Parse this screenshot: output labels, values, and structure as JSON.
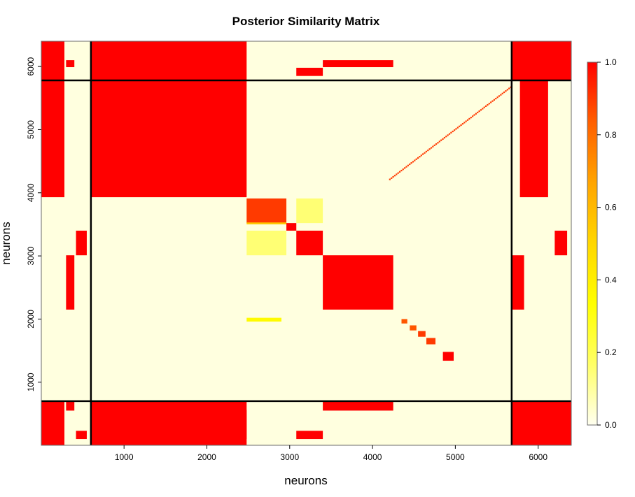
{
  "chart_data": {
    "type": "heatmap",
    "title": "Posterior Similarity Matrix",
    "xlabel": "neurons",
    "ylabel": "neurons",
    "xlim": [
      1,
      6400
    ],
    "ylim": [
      1,
      6400
    ],
    "x_ticks": [
      1000,
      2000,
      3000,
      4000,
      5000,
      6000
    ],
    "y_ticks": [
      1000,
      2000,
      3000,
      4000,
      5000,
      6000
    ],
    "x_tick_labels": [
      "1000",
      "2000",
      "3000",
      "4000",
      "5000",
      "6000"
    ],
    "y_tick_labels": [
      "1000",
      "2000",
      "3000",
      "4000",
      "5000",
      "6000"
    ],
    "colorbar": {
      "min": 0.0,
      "max": 1.0,
      "ticks": [
        0.0,
        0.2,
        0.4,
        0.6,
        0.8,
        1.0
      ],
      "tick_labels": [
        "0.0",
        "0.2",
        "0.4",
        "0.6",
        "0.8",
        "1.0"
      ],
      "colors": [
        "#fffff0",
        "#ffff66",
        "#ffff00",
        "#ffd700",
        "#ffa500",
        "#ff6000",
        "#ff0000"
      ]
    },
    "background_value": 0.02,
    "separator_lines": {
      "x": [
        600,
        5680
      ],
      "y": [
        700,
        5780
      ],
      "color": "#000000"
    },
    "blocks": [
      {
        "x": [
          1,
          280
        ],
        "y": [
          5780,
          6400
        ],
        "value": 1.0
      },
      {
        "x": [
          600,
          2480
        ],
        "y": [
          5780,
          6400
        ],
        "value": 1.0
      },
      {
        "x": [
          1,
          280
        ],
        "y": [
          1,
          700
        ],
        "value": 1.0
      },
      {
        "x": [
          600,
          2480
        ],
        "y": [
          1,
          700
        ],
        "value": 1.0
      },
      {
        "x": [
          5680,
          6400
        ],
        "y": [
          5780,
          6400
        ],
        "value": 1.0
      },
      {
        "x": [
          5680,
          6400
        ],
        "y": [
          1,
          700
        ],
        "value": 1.0
      },
      {
        "x": [
          1,
          280
        ],
        "y": [
          3930,
          5780
        ],
        "value": 1.0
      },
      {
        "x": [
          5780,
          6120
        ],
        "y": [
          3930,
          5780
        ],
        "value": 1.0
      },
      {
        "x": [
          600,
          2480
        ],
        "y": [
          3930,
          5780
        ],
        "value": 1.0
      },
      {
        "x": [
          1,
          280
        ],
        "y": [
          100,
          560
        ],
        "value": 1.0
      },
      {
        "x": [
          600,
          2480
        ],
        "y": [
          100,
          560
        ],
        "value": 1.0
      },
      {
        "x": [
          5780,
          6120
        ],
        "y": [
          100,
          560
        ],
        "value": 1.0
      },
      {
        "x": [
          2480,
          2960
        ],
        "y": [
          3520,
          3910
        ],
        "value": 0.9
      },
      {
        "x": [
          2960,
          3080
        ],
        "y": [
          3400,
          3520
        ],
        "value": 1.0
      },
      {
        "x": [
          3080,
          3400
        ],
        "y": [
          3010,
          3400
        ],
        "value": 1.0
      },
      {
        "x": [
          3400,
          4250
        ],
        "y": [
          2150,
          3010
        ],
        "value": 1.0
      },
      {
        "x": [
          3400,
          4250
        ],
        "y": [
          5990,
          6100
        ],
        "value": 1.0
      },
      {
        "x": [
          3400,
          4250
        ],
        "y": [
          550,
          700
        ],
        "value": 1.0
      },
      {
        "x": [
          3080,
          3400
        ],
        "y": [
          5850,
          5980
        ],
        "value": 1.0
      },
      {
        "x": [
          3080,
          3400
        ],
        "y": [
          100,
          230
        ],
        "value": 1.0
      },
      {
        "x": [
          420,
          550
        ],
        "y": [
          3010,
          3400
        ],
        "value": 1.0
      },
      {
        "x": [
          300,
          400
        ],
        "y": [
          2150,
          3010
        ],
        "value": 1.0
      },
      {
        "x": [
          6200,
          6350
        ],
        "y": [
          3010,
          3400
        ],
        "value": 1.0
      },
      {
        "x": [
          5680,
          5830
        ],
        "y": [
          2150,
          3010
        ],
        "value": 1.0
      },
      {
        "x": [
          300,
          400
        ],
        "y": [
          5990,
          6100
        ],
        "value": 1.0
      },
      {
        "x": [
          300,
          400
        ],
        "y": [
          550,
          700
        ],
        "value": 1.0
      },
      {
        "x": [
          5680,
          5830
        ],
        "y": [
          5990,
          6100
        ],
        "value": 1.0
      },
      {
        "x": [
          5680,
          5830
        ],
        "y": [
          550,
          700
        ],
        "value": 1.0
      },
      {
        "x": [
          420,
          550
        ],
        "y": [
          100,
          230
        ],
        "value": 1.0
      },
      {
        "x": [
          6200,
          6350
        ],
        "y": [
          5850,
          5980
        ],
        "value": 1.0
      },
      {
        "x": [
          6200,
          6350
        ],
        "y": [
          100,
          230
        ],
        "value": 1.0
      },
      {
        "x": [
          4850,
          4980
        ],
        "y": [
          1340,
          1480
        ],
        "value": 1.0
      },
      {
        "x": [
          4650,
          4760
        ],
        "y": [
          1600,
          1700
        ],
        "value": 0.9
      },
      {
        "x": [
          4550,
          4640
        ],
        "y": [
          1720,
          1810
        ],
        "value": 0.9
      },
      {
        "x": [
          4450,
          4530
        ],
        "y": [
          1820,
          1900
        ],
        "value": 0.85
      },
      {
        "x": [
          4350,
          4420
        ],
        "y": [
          1930,
          2000
        ],
        "value": 0.85
      },
      {
        "x": [
          2480,
          2960
        ],
        "y": [
          3010,
          3400
        ],
        "value": 0.15
      },
      {
        "x": [
          3080,
          3400
        ],
        "y": [
          3520,
          3910
        ],
        "value": 0.15
      },
      {
        "x": [
          2480,
          2900
        ],
        "y": [
          1960,
          2020
        ],
        "value": 0.35
      },
      {
        "x": [
          2480,
          2960
        ],
        "y": [
          3500,
          3530
        ],
        "value": 0.55
      }
    ],
    "diagonal": {
      "from": 4200,
      "to": 5680,
      "value": 0.9
    }
  }
}
